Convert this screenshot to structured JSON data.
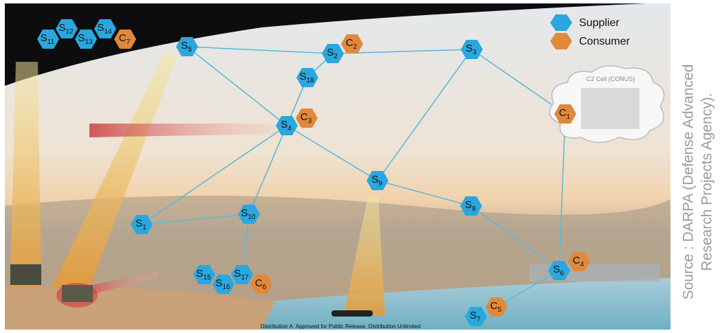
{
  "legend": {
    "supplier": "Supplier",
    "consumer": "Consumer"
  },
  "cloud_label": "C2 Cell (CONUS)",
  "footer": "Distribution A: Approved for Public Release, Distribution Unlimited",
  "source": [
    "Source : DARPA (Defense Advanced",
    "Research Projects Agency)."
  ],
  "nodes": [
    {
      "letter": "S",
      "sub": "11"
    },
    {
      "letter": "S",
      "sub": "12"
    },
    {
      "letter": "S",
      "sub": "13"
    },
    {
      "letter": "S",
      "sub": "14"
    },
    {
      "letter": "C",
      "sub": "7"
    },
    {
      "letter": "S",
      "sub": "5"
    },
    {
      "letter": "C",
      "sub": "2"
    },
    {
      "letter": "S",
      "sub": "2"
    },
    {
      "letter": "S",
      "sub": "3"
    },
    {
      "letter": "S",
      "sub": "18"
    },
    {
      "letter": "C",
      "sub": "3"
    },
    {
      "letter": "S",
      "sub": "4"
    },
    {
      "letter": "C",
      "sub": "1"
    },
    {
      "letter": "S",
      "sub": "9"
    },
    {
      "letter": "S",
      "sub": "8"
    },
    {
      "letter": "S",
      "sub": "10"
    },
    {
      "letter": "S",
      "sub": "1"
    },
    {
      "letter": "S",
      "sub": "15"
    },
    {
      "letter": "S",
      "sub": "17"
    },
    {
      "letter": "S",
      "sub": "16"
    },
    {
      "letter": "C",
      "sub": "6"
    },
    {
      "letter": "C",
      "sub": "4"
    },
    {
      "letter": "S",
      "sub": "6"
    },
    {
      "letter": "C",
      "sub": "5"
    },
    {
      "letter": "S",
      "sub": "7"
    }
  ]
}
